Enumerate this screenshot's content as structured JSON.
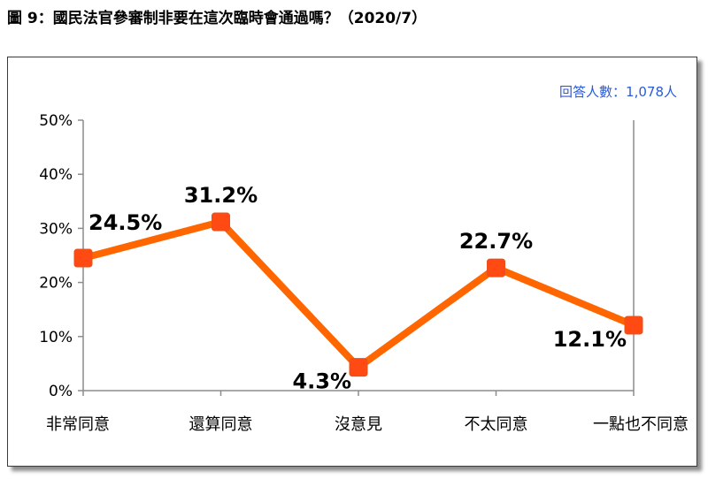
{
  "figure": {
    "title": "圖 9：國民法官參審制非要在這次臨時會通過嗎？（2020/7）",
    "respondents": "回答人數：1,078人"
  },
  "colors": {
    "line": "#FF6600",
    "marker": "#FF4A14",
    "marker_stroke": "#E8521A",
    "axis": "#8c8c8c",
    "respondents_text": "#2a5bd7"
  },
  "chart_data": {
    "type": "line",
    "title": "",
    "xlabel": "",
    "ylabel": "",
    "ylim": [
      0,
      50
    ],
    "yticks": [
      0,
      10,
      20,
      30,
      40,
      50
    ],
    "ytick_labels": [
      "0%",
      "10%",
      "20%",
      "30%",
      "40%",
      "50%"
    ],
    "categories": [
      "非常同意",
      "還算同意",
      "沒意見",
      "不太同意",
      "一點也不同意"
    ],
    "series": [
      {
        "values": [
          24.5,
          31.2,
          4.3,
          22.7,
          12.1
        ],
        "labels": [
          "24.5%",
          "31.2%",
          "4.3%",
          "22.7%",
          "12.1%"
        ],
        "label_positions": [
          "above-right",
          "above",
          "below-left",
          "above",
          "below-left"
        ]
      }
    ],
    "grid": false,
    "legend": "none"
  }
}
